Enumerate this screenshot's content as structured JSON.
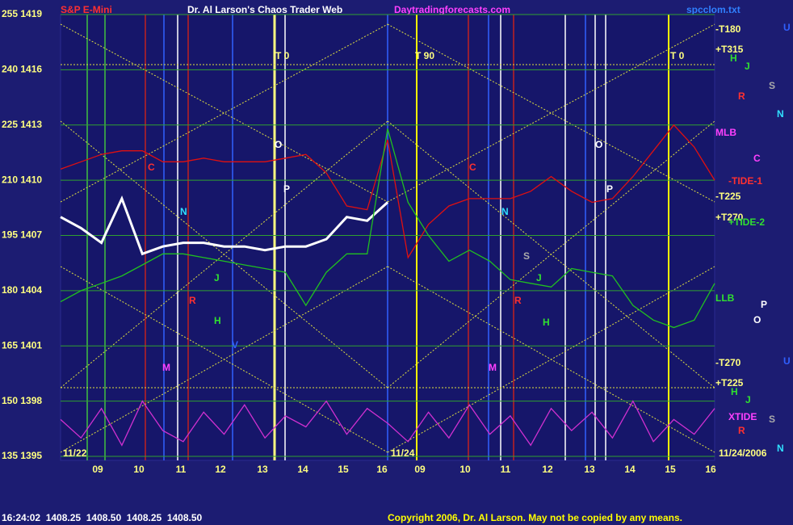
{
  "chart_data": {
    "type": "line",
    "symbol": "S&P E-Mini",
    "title": "Dr. Al Larson's Chaos Trader Web",
    "site": "Daytradingforecasts.com",
    "file": "spcclom.txt",
    "ylim": [
      135,
      255
    ],
    "yticks": [
      {
        "value": 255,
        "label": "255 1419"
      },
      {
        "value": 240,
        "label": "240 1416"
      },
      {
        "value": 225,
        "label": "225 1413"
      },
      {
        "value": 210,
        "label": "210 1410"
      },
      {
        "value": 195,
        "label": "195 1407"
      },
      {
        "value": 180,
        "label": "180 1404"
      },
      {
        "value": 165,
        "label": "165 1401"
      },
      {
        "value": 150,
        "label": "150 1398"
      },
      {
        "value": 135,
        "label": "135 1395"
      }
    ],
    "grid": true,
    "x_labels": [
      "09",
      "10",
      "11",
      "12",
      "13",
      "14",
      "15",
      "16",
      "09",
      "10",
      "11",
      "12",
      "13",
      "14",
      "15",
      "16"
    ],
    "date_labels": [
      "11/22",
      "11/24",
      "11/24/2006"
    ],
    "series": [
      {
        "name": "price",
        "color": "#ffffff",
        "values": [
          200,
          197,
          193,
          205,
          190,
          192,
          193,
          193,
          192,
          192,
          191,
          192,
          192,
          194,
          200,
          199,
          204,
          null,
          null,
          null,
          null,
          null,
          null,
          null,
          null,
          null,
          null,
          null,
          null,
          null,
          null,
          null,
          null
        ]
      },
      {
        "name": "tide-1",
        "color": "#e01010",
        "values": [
          213,
          215,
          217,
          218,
          218,
          215,
          215,
          216,
          215,
          215,
          215,
          216,
          217,
          212,
          203,
          202,
          221,
          189,
          198,
          203,
          205,
          205,
          205,
          207,
          211,
          207,
          204,
          205,
          211,
          218,
          225,
          219,
          210
        ]
      },
      {
        "name": "tide-2",
        "color": "#20c020",
        "values": [
          177,
          180,
          182,
          184,
          187,
          190,
          190,
          189,
          188,
          187,
          186,
          185,
          176,
          185,
          190,
          190,
          224,
          204,
          195,
          188,
          191,
          188,
          183,
          182,
          181,
          186,
          185,
          184,
          176,
          172,
          170,
          172,
          182
        ]
      },
      {
        "name": "xtide",
        "color": "#d030d0",
        "values": [
          145,
          140,
          148,
          138,
          150,
          142,
          139,
          147,
          141,
          149,
          140,
          146,
          143,
          150,
          141,
          148,
          144,
          139,
          147,
          140,
          149,
          141,
          146,
          138,
          148,
          142,
          147,
          140,
          150,
          139,
          145,
          141,
          148
        ]
      }
    ],
    "annotations": [
      "T 0",
      "T 90",
      "T 0",
      "O",
      "O",
      "P",
      "P",
      "C",
      "C",
      "N",
      "N",
      "R",
      "R",
      "J",
      "J",
      "H",
      "H",
      "V",
      "M",
      "M",
      "S",
      "-T180",
      "+T315",
      "H",
      "J",
      "S",
      "R",
      "N",
      "MLB",
      "C",
      "-TIDE-1",
      "-T225",
      "+T270",
      "+TIDE-2",
      "U",
      "LLB",
      "P",
      "O",
      "-T270",
      "+T225",
      "H",
      "J",
      "XTIDE",
      "S",
      "R",
      "N",
      "U"
    ],
    "status": "16:24:02  1408.25  1408.50  1408.25  1408.50",
    "copyright": "Copyright 2006, Dr. Al Larson. May not be copied by any means."
  }
}
